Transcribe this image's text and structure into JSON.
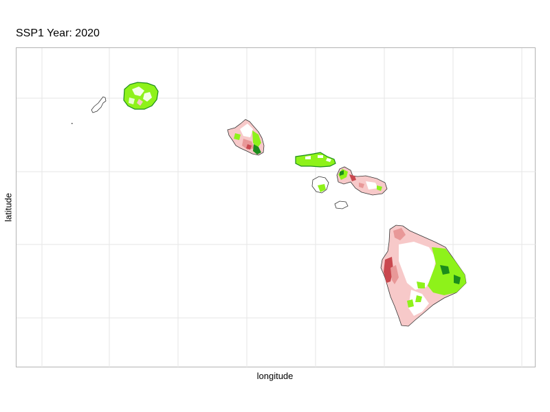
{
  "map": {
    "title": "SSP1 Year: 2020",
    "xlabel": "longitude",
    "ylabel": "latitude"
  },
  "colors": {
    "vegetation": "#8ef21a",
    "forest": "#1c8c1c",
    "urban_light": "#f7c9c9",
    "urban_mid": "#e89898",
    "urban_dark": "#c9484f",
    "outline": "#333333",
    "grid": "#e6e6e6"
  },
  "islands": [
    {
      "name": "Niihau"
    },
    {
      "name": "Kauai"
    },
    {
      "name": "Oahu"
    },
    {
      "name": "Molokai"
    },
    {
      "name": "Lanai"
    },
    {
      "name": "Maui"
    },
    {
      "name": "Kahoolawe"
    },
    {
      "name": "Hawaii"
    }
  ]
}
